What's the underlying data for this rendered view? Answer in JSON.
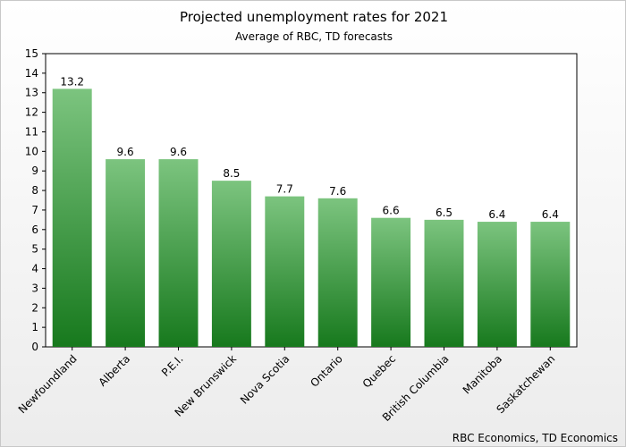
{
  "chart_data": {
    "type": "bar",
    "title": "Projected unemployment rates for 2021",
    "subtitle": "Average of RBC, TD forecasts",
    "categories": [
      "Newfoundland",
      "Alberta",
      "P.E.I.",
      "New Brunswick",
      "Nova Scotia",
      "Ontario",
      "Quebec",
      "British Columbia",
      "Manitoba",
      "Saskatchewan"
    ],
    "values": [
      13.2,
      9.6,
      9.6,
      8.5,
      7.7,
      7.6,
      6.6,
      6.5,
      6.4,
      6.4
    ],
    "data_labels": [
      "13.2",
      "9.6",
      "9.6",
      "8.5",
      "7.7",
      "7.6",
      "6.6",
      "6.5",
      "6.4",
      "6.4"
    ],
    "xlabel": "",
    "ylabel": "",
    "ylim": [
      0,
      15
    ],
    "yticks": [
      0,
      1,
      2,
      3,
      4,
      5,
      6,
      7,
      8,
      9,
      10,
      11,
      12,
      13,
      14,
      15
    ],
    "grid": false,
    "legend": "none",
    "source": "RBC Economics, TD Economics",
    "colors": {
      "bar_top": "#7cc47f",
      "bar_bottom": "#17791d",
      "plot_background": "#ffffff"
    }
  }
}
